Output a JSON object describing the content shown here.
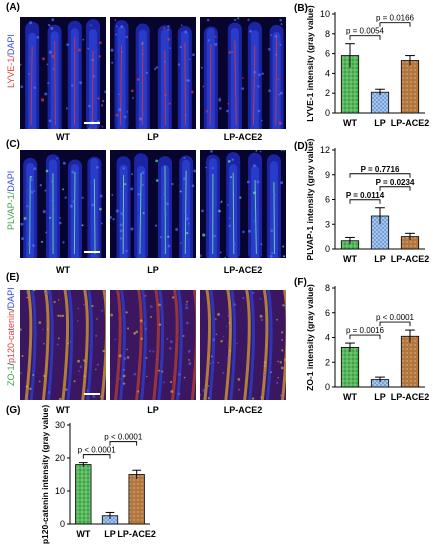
{
  "panels": {
    "A": {
      "letter": "(A)",
      "stain": [
        {
          "text": "LYVE-1",
          "color": "#e23b3b"
        },
        {
          "text": "/",
          "color": "#e23b3b"
        },
        {
          "text": "DAPI",
          "color": "#3b4de2"
        }
      ]
    },
    "B": {
      "letter": "(B)"
    },
    "C": {
      "letter": "(C)",
      "stain": [
        {
          "text": "PLVAP-1",
          "color": "#3fa648"
        },
        {
          "text": "/",
          "color": "#3fa648"
        },
        {
          "text": "DAPI",
          "color": "#3b4de2"
        }
      ]
    },
    "D": {
      "letter": "(D)"
    },
    "E": {
      "letter": "(E)",
      "stain": [
        {
          "text": "ZO-1",
          "color": "#3fa648"
        },
        {
          "text": "/",
          "color": "#333333"
        },
        {
          "text": "p120-catenin",
          "color": "#e23b3b"
        },
        {
          "text": "/",
          "color": "#333333"
        },
        {
          "text": "DAPI",
          "color": "#3b4de2"
        }
      ]
    },
    "F": {
      "letter": "(F)"
    },
    "G": {
      "letter": "(G)"
    }
  },
  "conditions": [
    "WT",
    "LP",
    "LP-ACE2"
  ],
  "colors": {
    "wt": "#3aa640",
    "lp": "#6f9fd8",
    "lpace2": "#b3773e"
  },
  "chart_data": [
    {
      "panel": "B",
      "type": "bar",
      "categories": [
        "WT",
        "LP",
        "LP-ACE2"
      ],
      "values": [
        5.8,
        2.1,
        5.3
      ],
      "errors": [
        1.2,
        0.3,
        0.5
      ],
      "ylabel": "LYVE-1 intensity (gray value)",
      "ylim": [
        0,
        10
      ],
      "yticks": [
        0,
        2,
        4,
        6,
        8,
        10
      ],
      "comparisons": [
        {
          "from": 0,
          "to": 1,
          "label": "p = 0.0054"
        },
        {
          "from": 1,
          "to": 2,
          "label": "p = 0.0166"
        }
      ]
    },
    {
      "panel": "D",
      "type": "bar",
      "categories": [
        "WT",
        "LP",
        "LP-ACE2"
      ],
      "values": [
        1.0,
        4.0,
        1.5
      ],
      "errors": [
        0.4,
        1.0,
        0.4
      ],
      "ylabel": "PLVAP-1 intensity (gray value)",
      "ylim": [
        0,
        12
      ],
      "yticks": [
        0,
        3,
        6,
        9,
        12
      ],
      "comparisons": [
        {
          "from": 0,
          "to": 1,
          "label": "P = 0.0114"
        },
        {
          "from": 1,
          "to": 2,
          "label": "P = 0.0234"
        },
        {
          "from": 0,
          "to": 2,
          "label": "P = 0.7716"
        }
      ]
    },
    {
      "panel": "F",
      "type": "bar",
      "categories": [
        "WT",
        "LP",
        "LP-ACE2"
      ],
      "values": [
        3.2,
        0.6,
        4.1
      ],
      "errors": [
        0.35,
        0.2,
        0.5
      ],
      "ylabel": "ZO-1 intensity (gray value)",
      "ylim": [
        0,
        8
      ],
      "yticks": [
        0,
        2,
        4,
        6,
        8
      ],
      "comparisons": [
        {
          "from": 0,
          "to": 1,
          "label": "p = 0.0016"
        },
        {
          "from": 1,
          "to": 2,
          "label": "p < 0.0001"
        }
      ]
    },
    {
      "panel": "G",
      "type": "bar",
      "categories": [
        "WT",
        "LP",
        "LP-ACE2"
      ],
      "values": [
        18.0,
        2.5,
        15.0
      ],
      "errors": [
        0.6,
        1.0,
        1.3
      ],
      "ylabel": "p120-catenin intensity (gray value)",
      "ylim": [
        0,
        30
      ],
      "yticks": [
        0,
        10,
        20,
        30
      ],
      "comparisons": [
        {
          "from": 0,
          "to": 1,
          "label": "p < 0.0001"
        },
        {
          "from": 1,
          "to": 2,
          "label": "p < 0.0001"
        }
      ]
    }
  ]
}
